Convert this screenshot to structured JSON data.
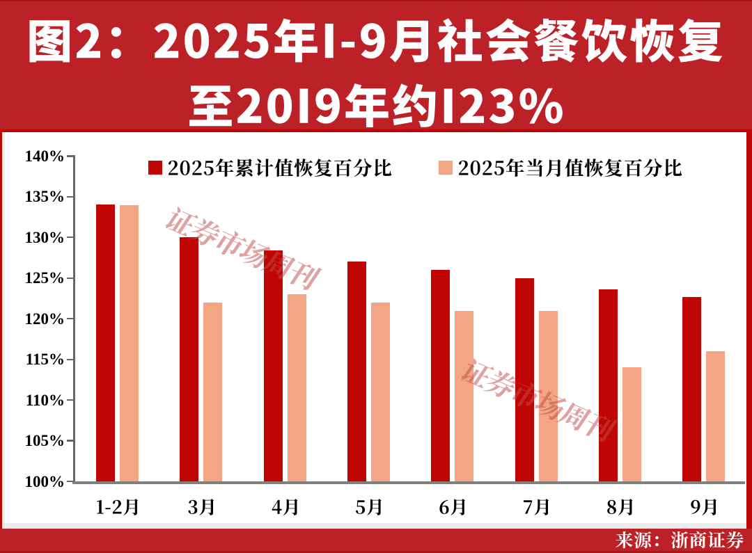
{
  "page": {
    "background_red": "#c00505",
    "band_red": "#bc2127",
    "edge_dark_red": "#a3161a",
    "panel_white": "#ffffff",
    "panel_strip_gray": "#ececec"
  },
  "title": {
    "line1": "图2：2025年1-9月社会餐饮恢复",
    "line2": "至2019年约123%",
    "full": "图2：2025年1-9月社会餐饮恢复至2019年约123%",
    "color": "#ffffff"
  },
  "watermark": {
    "text": "证券市场周刊"
  },
  "footer": {
    "source_label": "来源：浙商证券"
  },
  "chart_data": {
    "type": "bar",
    "title": "2025年1-9月社会餐饮恢复至2019年约123%",
    "categories": [
      "1-2月",
      "3月",
      "4月",
      "5月",
      "6月",
      "7月",
      "8月",
      "9月"
    ],
    "series": [
      {
        "name": "2025年累计值恢复百分比",
        "color": "#c00505",
        "values": [
          134.1,
          130,
          128.4,
          127,
          126,
          125,
          123.6,
          122.7
        ]
      },
      {
        "name": "2025年当月值恢复百分比",
        "color": "#f2a683",
        "values": [
          134,
          122,
          123,
          122,
          121,
          121,
          114,
          116
        ]
      }
    ],
    "xlabel": "",
    "ylabel": "",
    "ylim": [
      100,
      140
    ],
    "y_ticks": [
      140,
      135,
      130,
      125,
      120,
      115,
      110,
      105,
      100
    ],
    "y_tick_labels": [
      "140%",
      "135%",
      "130%",
      "125%",
      "120%",
      "115%",
      "110%",
      "105%",
      "100%"
    ],
    "grid": false,
    "legend_position": "top",
    "axis_color": "#666666",
    "x_axis_color": "#808080",
    "label_color": "#000000"
  }
}
